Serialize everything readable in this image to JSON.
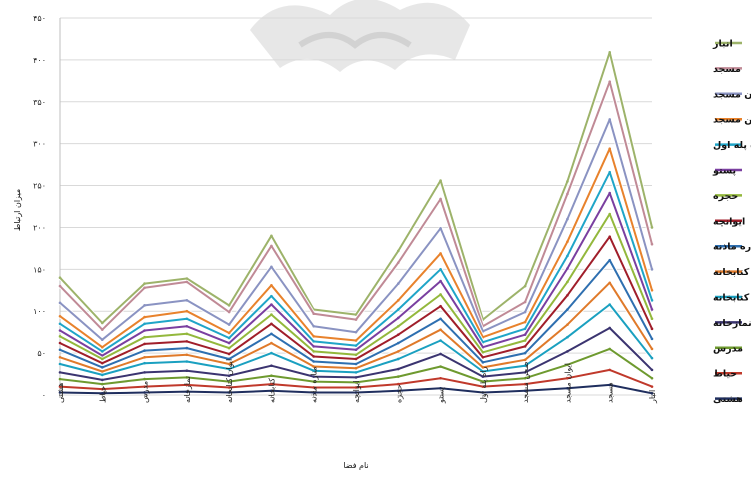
{
  "chart_data": {
    "type": "area",
    "stacked": true,
    "categories": [
      "هشتی",
      "حیاط",
      "مدرس",
      "نمازخانه",
      "ایوان کتابخانه",
      "کتابخانه",
      "مناره ماذنه",
      "ایوانچه",
      "حجره",
      "پستو",
      "راه پله اول",
      "صحن مسجد",
      "ایوان مسجد",
      "مسجد",
      "انبار"
    ],
    "xlabel": "نام فضا",
    "ylabel": "میزان ارتباط",
    "ylim": [
      0,
      450
    ],
    "yticks": [
      "۰",
      "۵۰",
      "۱۰۰",
      "۱۵۰",
      "۲۰۰",
      "۲۵۰",
      "۳۰۰",
      "۳۵۰",
      "۴۰۰",
      "۴۵۰"
    ],
    "grid": true,
    "legend_position": "right",
    "series": [
      {
        "name": "هشتی",
        "color": "#1f2e5e",
        "values": [
          3,
          2,
          3,
          4,
          3,
          5,
          3,
          3,
          5,
          8,
          3,
          5,
          8,
          12,
          2
        ]
      },
      {
        "name": "حیاط",
        "color": "#c0392b",
        "values": [
          7,
          5,
          7,
          8,
          6,
          8,
          6,
          6,
          8,
          12,
          7,
          8,
          12,
          18,
          8
        ]
      },
      {
        "name": "مدرس",
        "color": "#6e9a2f",
        "values": [
          9,
          6,
          9,
          9,
          7,
          10,
          7,
          6,
          9,
          14,
          6,
          7,
          16,
          25,
          10
        ]
      },
      {
        "name": "نمازخانه",
        "color": "#3b3470",
        "values": [
          8,
          5,
          8,
          8,
          7,
          12,
          6,
          6,
          9,
          15,
          6,
          7,
          16,
          25,
          10
        ]
      },
      {
        "name": "ایوان کتابخانه",
        "color": "#1aa0c0",
        "values": [
          10,
          6,
          11,
          11,
          8,
          15,
          7,
          6,
          12,
          16,
          6,
          8,
          17,
          28,
          14
        ]
      },
      {
        "name": "کتابخانه",
        "color": "#e07a2a",
        "values": [
          8,
          4,
          7,
          8,
          6,
          12,
          5,
          5,
          9,
          13,
          5,
          7,
          15,
          26,
          11
        ]
      },
      {
        "name": "مناره ماذنه",
        "color": "#2e6fb0",
        "values": [
          9,
          5,
          8,
          8,
          6,
          11,
          6,
          5,
          10,
          13,
          6,
          8,
          18,
          27,
          12
        ]
      },
      {
        "name": "ایوانچه",
        "color": "#a01e2a",
        "values": [
          8,
          5,
          8,
          8,
          6,
          12,
          6,
          6,
          10,
          15,
          6,
          8,
          17,
          28,
          12
        ]
      },
      {
        "name": "حجره",
        "color": "#93b83c",
        "values": [
          8,
          5,
          8,
          9,
          7,
          11,
          6,
          5,
          10,
          14,
          6,
          7,
          16,
          27,
          12
        ]
      },
      {
        "name": "پستو",
        "color": "#7a3fa0",
        "values": [
          7,
          4,
          8,
          9,
          6,
          12,
          6,
          6,
          10,
          16,
          6,
          7,
          16,
          25,
          11
        ]
      },
      {
        "name": "راه پله اول",
        "color": "#1fa5c8",
        "values": [
          8,
          5,
          8,
          9,
          6,
          10,
          6,
          5,
          10,
          14,
          6,
          7,
          15,
          25,
          11
        ]
      },
      {
        "name": "صحن مسجد",
        "color": "#e8822c",
        "values": [
          9,
          5,
          8,
          9,
          6,
          13,
          6,
          6,
          11,
          19,
          6,
          8,
          17,
          28,
          12
        ]
      },
      {
        "name": "ایوان مسجد",
        "color": "#8a93c2",
        "values": [
          16,
          9,
          14,
          13,
          10,
          22,
          12,
          10,
          20,
          30,
          7,
          12,
          27,
          35,
          25
        ]
      },
      {
        "name": "مسجد",
        "color": "#c08a96",
        "values": [
          20,
          12,
          21,
          22,
          15,
          25,
          15,
          15,
          25,
          35,
          6,
          12,
          30,
          45,
          30
        ]
      },
      {
        "name": "انبار",
        "color": "#9db36a",
        "values": [
          10,
          8,
          5,
          4,
          8,
          12,
          5,
          6,
          14,
          22,
          8,
          19,
          15,
          35,
          20
        ]
      }
    ]
  }
}
